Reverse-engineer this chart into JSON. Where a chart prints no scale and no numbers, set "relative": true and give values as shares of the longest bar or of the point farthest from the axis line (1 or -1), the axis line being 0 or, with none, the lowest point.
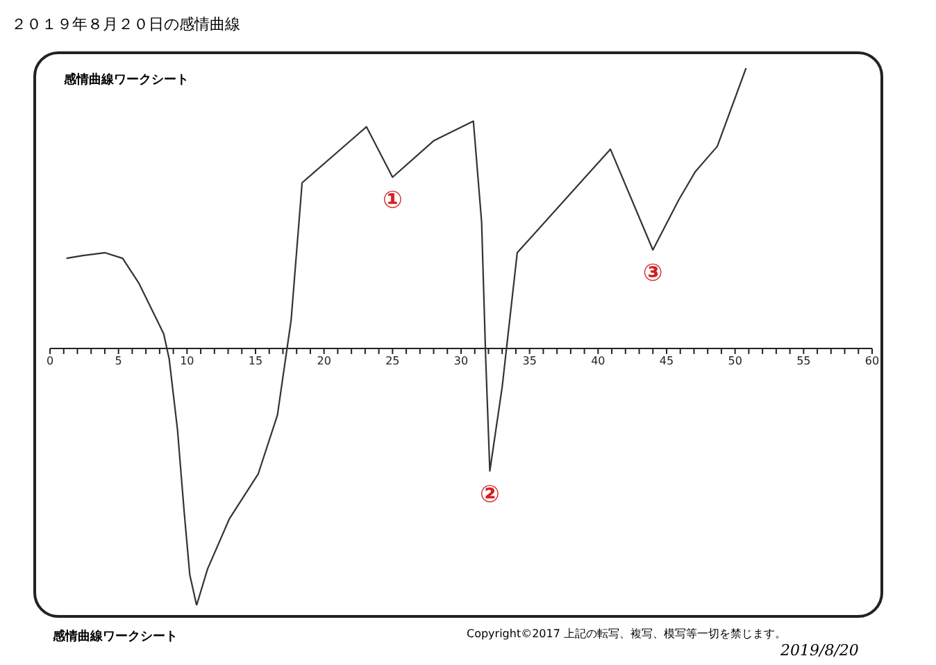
{
  "chart_data": {
    "type": "line",
    "title": "２０１９年８月２０日の感情曲線",
    "subtitle": "感情曲線ワークシート",
    "relative": true,
    "color": "#333333",
    "line_style": "solid",
    "x": [
      1.2,
      2.4,
      4.0,
      5.3,
      6.5,
      7.7,
      8.3,
      8.7,
      9.3,
      9.8,
      10.2,
      10.7,
      11.5,
      13.1,
      15.2,
      16.6,
      17.6,
      18.4,
      23.1,
      25.0,
      28.0,
      30.9,
      31.5,
      31.8,
      32.1,
      33.0,
      34.1,
      40.9,
      44.0,
      45.9,
      47.1,
      48.7,
      50.8
    ],
    "values": [
      0.32,
      0.33,
      0.34,
      0.32,
      0.23,
      0.11,
      0.05,
      -0.04,
      -0.29,
      -0.59,
      -0.81,
      -0.92,
      -0.79,
      -0.61,
      -0.45,
      -0.24,
      0.1,
      0.59,
      0.79,
      0.61,
      0.74,
      0.81,
      0.45,
      -0.04,
      -0.44,
      -0.14,
      0.34,
      0.71,
      0.35,
      0.53,
      0.63,
      0.72,
      1.0
    ],
    "xlim": [
      0,
      60
    ],
    "xticks": [
      0,
      {
        "value": 1,
        "label": null
      },
      {
        "value": 2,
        "label": null
      },
      {
        "value": 3,
        "label": null
      },
      {
        "value": 4,
        "label": null
      },
      5,
      {
        "value": 6,
        "label": null
      },
      {
        "value": 7,
        "label": null
      },
      {
        "value": 8,
        "label": null
      },
      {
        "value": 9,
        "label": null
      },
      10,
      {
        "value": 11,
        "label": null
      },
      {
        "value": 12,
        "label": null
      },
      {
        "value": 13,
        "label": null
      },
      {
        "value": 14,
        "label": null
      },
      15,
      {
        "value": 16,
        "label": null
      },
      {
        "value": 17,
        "label": null
      },
      {
        "value": 18,
        "label": null
      },
      {
        "value": 19,
        "label": null
      },
      20,
      {
        "value": 21,
        "label": null
      },
      {
        "value": 22,
        "label": null
      },
      {
        "value": 23,
        "label": null
      },
      {
        "value": 24,
        "label": null
      },
      25,
      {
        "value": 26,
        "label": null
      },
      {
        "value": 27,
        "label": null
      },
      {
        "value": 28,
        "label": null
      },
      {
        "value": 29,
        "label": null
      },
      30,
      {
        "value": 31,
        "label": null
      },
      {
        "value": 32,
        "label": null
      },
      {
        "value": 33,
        "label": null
      },
      {
        "value": 34,
        "label": null
      },
      35,
      {
        "value": 36,
        "label": null
      },
      {
        "value": 37,
        "label": null
      },
      {
        "value": 38,
        "label": null
      },
      {
        "value": 39,
        "label": null
      },
      40,
      {
        "value": 41,
        "label": null
      },
      {
        "value": 42,
        "label": null
      },
      {
        "value": 43,
        "label": null
      },
      {
        "value": 44,
        "label": null
      },
      45,
      {
        "value": 46,
        "label": null
      },
      {
        "value": 47,
        "label": null
      },
      {
        "value": 48,
        "label": null
      },
      {
        "value": 49,
        "label": null
      },
      50,
      {
        "value": 51,
        "label": null
      },
      {
        "value": 52,
        "label": null
      },
      {
        "value": 53,
        "label": null
      },
      {
        "value": 54,
        "label": null
      },
      55,
      {
        "value": 56,
        "label": null
      },
      {
        "value": 57,
        "label": null
      },
      {
        "value": 58,
        "label": null
      },
      {
        "value": 59,
        "label": null
      },
      60
    ],
    "tick_labels": "x",
    "annotations": [
      {
        "text": "①",
        "x": 25.0,
        "y": 0.61
      },
      {
        "text": "②",
        "x": 32.1,
        "y": -0.44
      },
      {
        "text": "③",
        "x": 44.0,
        "y": 0.35
      },
      "感情曲線ワークシート",
      "Copyright©2017 上記の転写、複写、模写等一切を禁じます。",
      "2019/8/20"
    ]
  }
}
